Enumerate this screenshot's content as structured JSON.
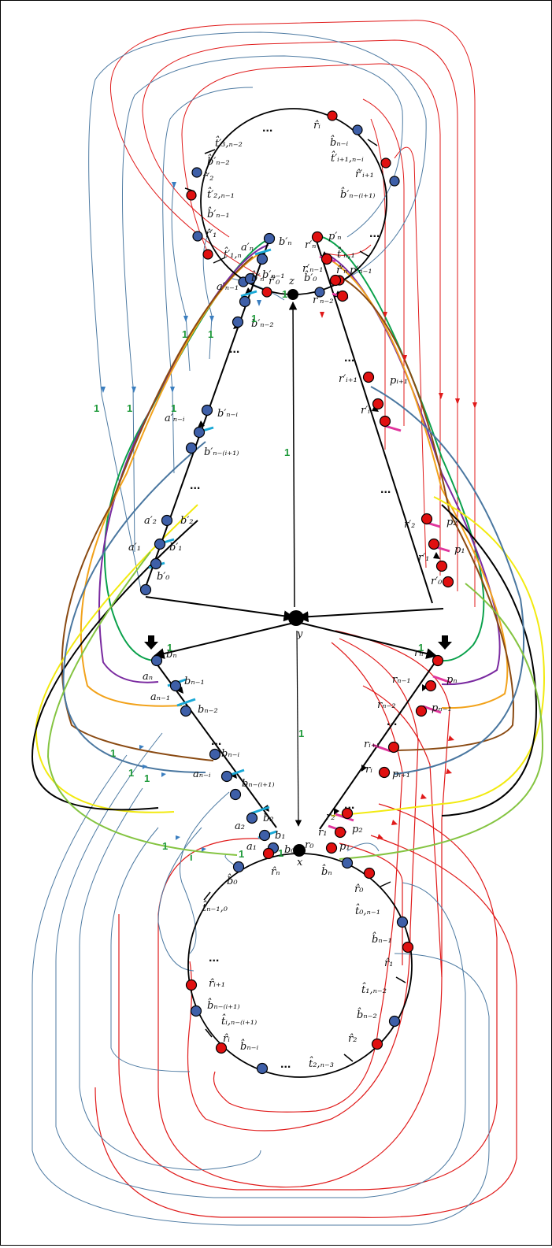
{
  "colors": {
    "blue_node": "#3e5fa8",
    "red_node": "#e01010",
    "black_node": "#000000",
    "blue_curve": "#4d7aa2",
    "red_curve": "#e01a1a",
    "cyan_tick": "#19a8d6",
    "pink_tick": "#e0359c",
    "green_path": "#0aa14b",
    "purple_path": "#7a2aa0",
    "orange_path": "#f2a21a",
    "brown_path": "#8a4a12",
    "yellow_path": "#f2ea10",
    "lightgreen_path": "#84c441",
    "steel_path": "#4a77a0",
    "edge_label_green": "#1f9a3a"
  },
  "center_nodes": {
    "z": "z",
    "y": "y",
    "x": "x"
  },
  "top_cycle_labels": [
    "r̂ᵢ",
    "b̂ₙ₋ᵢ",
    "t̂′ᵢ₊₁,ₙ₋ᵢ",
    "r̂′ᵢ₊₁",
    "b̂′ₙ₋₍ᵢ₊₁₎",
    "t̂′ₙ,₁",
    "r̂′ₙ",
    "b̂′₀",
    "r̂′₀",
    "b̂′ₙ",
    "t̂′₁,ₙ",
    "r̂′₁",
    "b̂′ₙ₋₁",
    "t̂′₂,ₙ₋₁",
    "r̂′₂",
    "b̂′ₙ₋₂",
    "t̂′₃,ₙ₋₂"
  ],
  "upper_left_labels": [
    "a′ₙ",
    "b′ₙ",
    "a′ₙ₋₁",
    "b′ₙ₋₁",
    "b′ₙ₋₂",
    "b′ₙ₋ᵢ",
    "a′ₙ₋ᵢ",
    "b′ₙ₋₍ᵢ₊₁₎",
    "a′₂",
    "b′₂",
    "a′₁",
    "b′₁",
    "b′₀"
  ],
  "upper_right_labels": [
    "r′ₙ",
    "p′ₙ",
    "r′ₙ₋₁",
    "p′ₙ₋₁",
    "r′ₙ₋₂",
    "r′ᵢ₊₁",
    "pᵢ₊₁",
    "r′ᵢ",
    "r′₂",
    "p₂",
    "r′₁",
    "p₁",
    "r′₀"
  ],
  "lower_left_labels": [
    "bₙ",
    "aₙ",
    "bₙ₋₁",
    "aₙ₋₁",
    "bₙ₋₂",
    "bₙ₋ᵢ",
    "aₙ₋ᵢ",
    "bₙ₋₍ᵢ₊₁₎",
    "b₂",
    "a₂",
    "b₁",
    "a₁",
    "b₀"
  ],
  "lower_right_labels": [
    "rₙ",
    "pₙ",
    "rₙ₋₁",
    "rₙ₋₂",
    "pₙ₋₁",
    "rᵢ₊₁",
    "rᵢ",
    "pᵢ₊₁",
    "r₂",
    "p₂",
    "r₁",
    "p₁",
    "r₀"
  ],
  "bottom_cycle_labels": [
    "r̂ₙ",
    "b̂ₙ",
    "r̂₀",
    "t̂₀,ₙ₋₁",
    "b̂ₙ₋₁",
    "r̂₁",
    "t̂₁,ₙ₋₂",
    "b̂ₙ₋₂",
    "r̂₂",
    "t̂₂,ₙ₋₃",
    "b̂ₙ₋ᵢ",
    "r̂ᵢ",
    "t̂ᵢ,ₙ₋₍ᵢ₊₁₎",
    "b̂ₙ₋₍ᵢ₊₁₎",
    "r̂ᵢ₊₁",
    "t̂ₙ₋₁,₀",
    "b̂₀"
  ],
  "edge_weight": "1",
  "ellipsis": "...",
  "bottom_iweight": "i"
}
